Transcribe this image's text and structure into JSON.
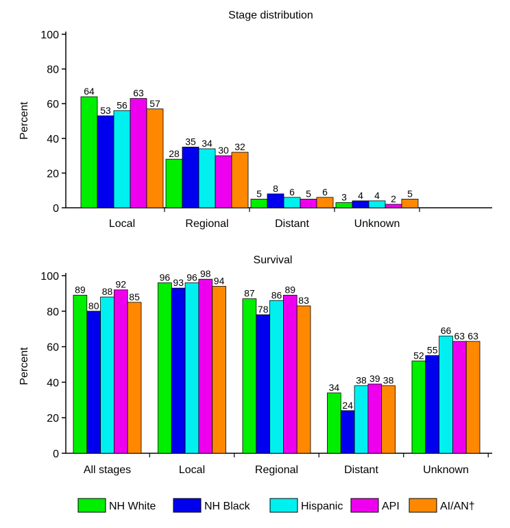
{
  "legend": {
    "entries": [
      {
        "name": "NH White",
        "color": "#00ee00"
      },
      {
        "name": "NH Black",
        "color": "#0000ee"
      },
      {
        "name": "Hispanic",
        "color": "#00f0f0"
      },
      {
        "name": "API",
        "color": "#ee00ee"
      },
      {
        "name": "AI/AN†",
        "color": "#ff8800"
      }
    ]
  },
  "chart_data": [
    {
      "type": "bar",
      "title": "Stage distribution",
      "ylabel": "Percent",
      "xlabel": "",
      "ylim": [
        0,
        100
      ],
      "yticks": [
        0,
        20,
        40,
        60,
        80,
        100
      ],
      "categories": [
        "Local",
        "Regional",
        "Distant",
        "Unknown"
      ],
      "series": [
        {
          "name": "NH White",
          "values": [
            64,
            28,
            5,
            3
          ]
        },
        {
          "name": "NH Black",
          "values": [
            53,
            35,
            8,
            4
          ]
        },
        {
          "name": "Hispanic",
          "values": [
            56,
            34,
            6,
            4
          ]
        },
        {
          "name": "API",
          "values": [
            63,
            30,
            5,
            2
          ]
        },
        {
          "name": "AI/AN†",
          "values": [
            57,
            32,
            6,
            5
          ]
        }
      ],
      "legend": "bottom",
      "grid": false
    },
    {
      "type": "bar",
      "title": "Survival",
      "ylabel": "Percent",
      "xlabel": "",
      "ylim": [
        0,
        100
      ],
      "yticks": [
        0,
        20,
        40,
        60,
        80,
        100
      ],
      "categories": [
        "All stages",
        "Local",
        "Regional",
        "Distant",
        "Unknown"
      ],
      "series": [
        {
          "name": "NH White",
          "values": [
            89,
            96,
            87,
            34,
            52
          ]
        },
        {
          "name": "NH Black",
          "values": [
            80,
            93,
            78,
            24,
            55
          ]
        },
        {
          "name": "Hispanic",
          "values": [
            88,
            96,
            86,
            38,
            66
          ]
        },
        {
          "name": "API",
          "values": [
            92,
            98,
            89,
            39,
            63
          ]
        },
        {
          "name": "AI/AN†",
          "values": [
            85,
            94,
            83,
            38,
            63
          ]
        }
      ],
      "legend": "bottom",
      "grid": false
    }
  ]
}
